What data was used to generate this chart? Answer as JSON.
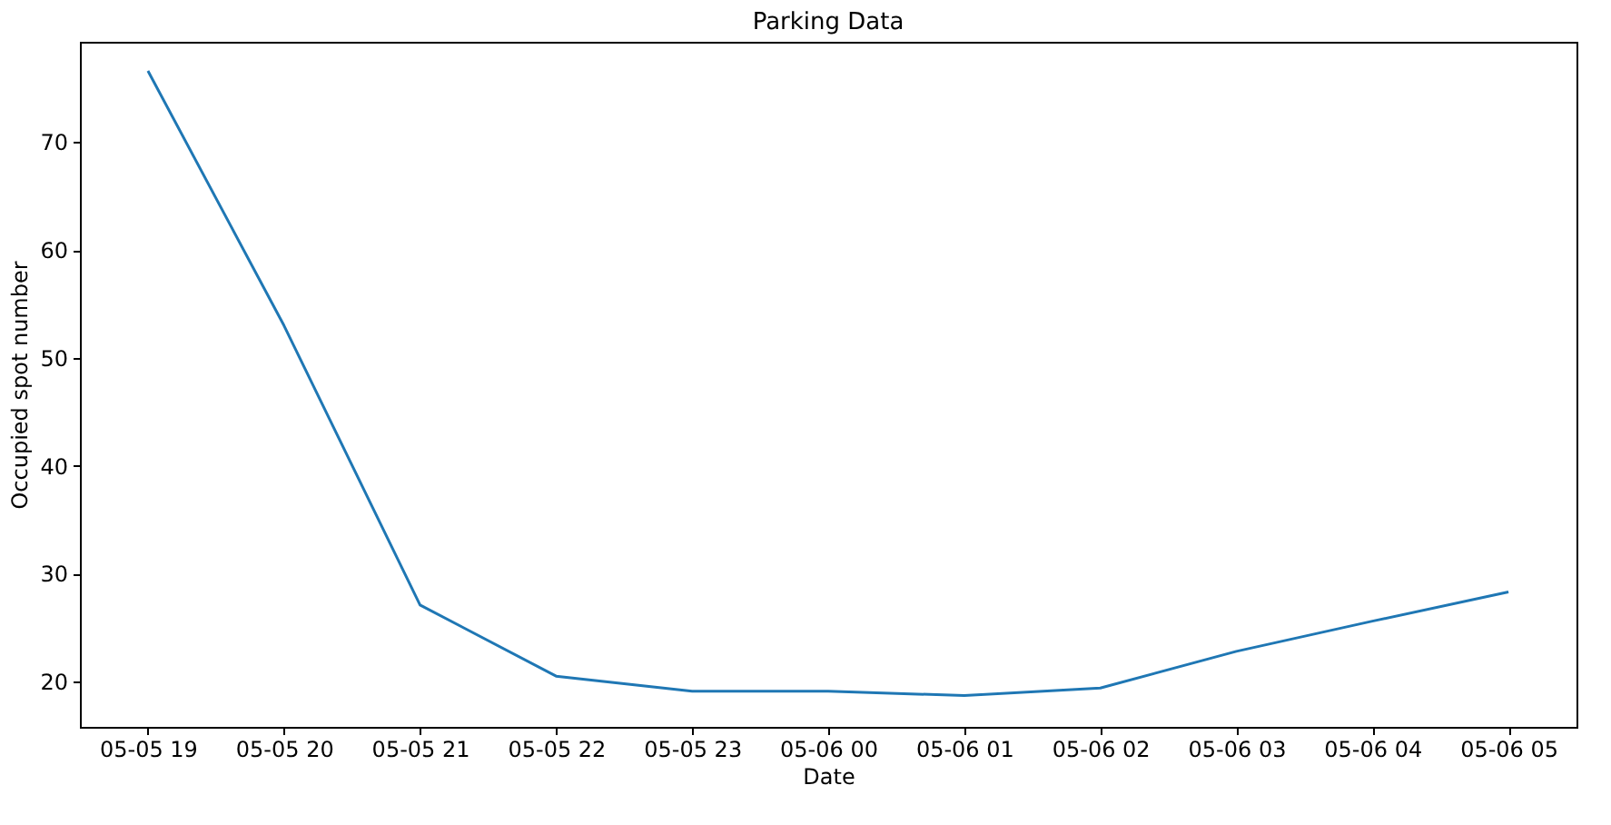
{
  "chart_data": {
    "type": "line",
    "title": "Parking Data",
    "xlabel": "Date",
    "ylabel": "Occupied spot number",
    "categories": [
      "05-05 19",
      "05-05 20",
      "05-05 21",
      "05-05 22",
      "05-05 23",
      "05-06 00",
      "05-06 01",
      "05-06 02",
      "05-06 03",
      "05-06 04",
      "05-06 05"
    ],
    "series": [
      {
        "color": "#1f77b4",
        "values": [
          76.6,
          53.0,
          27.1,
          20.5,
          19.1,
          19.1,
          18.7,
          19.4,
          22.8,
          25.6,
          28.3
        ]
      }
    ],
    "ylim": [
      15.8,
      79.3
    ],
    "yticks": [
      20,
      30,
      40,
      50,
      60,
      70
    ],
    "grid": false
  }
}
